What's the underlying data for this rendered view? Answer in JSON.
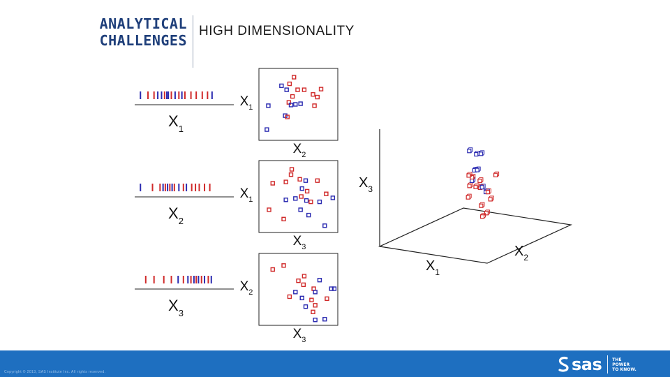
{
  "header": {
    "title_line1": "ANALYTICAL",
    "title_line2": "CHALLENGES",
    "subtitle": "HIGH DIMENSIONALITY"
  },
  "colors": {
    "title": "#1f3f7a",
    "red": "#d02a2a",
    "blue": "#2a2ab0",
    "footer": "#1e6fc0"
  },
  "labels": {
    "x1": "X1",
    "x2": "X2",
    "x3": "X3"
  },
  "panels": [
    {
      "x_axis": "X2",
      "y_axis": "X1",
      "points": [
        {
          "c": "red",
          "x": 0.44,
          "y": 0.91
        },
        {
          "c": "red",
          "x": 0.38,
          "y": 0.81
        },
        {
          "c": "blue",
          "x": 0.27,
          "y": 0.78
        },
        {
          "c": "blue",
          "x": 0.34,
          "y": 0.72
        },
        {
          "c": "red",
          "x": 0.49,
          "y": 0.72
        },
        {
          "c": "red",
          "x": 0.58,
          "y": 0.72
        },
        {
          "c": "red",
          "x": 0.81,
          "y": 0.73
        },
        {
          "c": "red",
          "x": 0.42,
          "y": 0.62
        },
        {
          "c": "red",
          "x": 0.7,
          "y": 0.65
        },
        {
          "c": "red",
          "x": 0.76,
          "y": 0.61
        },
        {
          "c": "blue",
          "x": 0.09,
          "y": 0.48
        },
        {
          "c": "red",
          "x": 0.37,
          "y": 0.53
        },
        {
          "c": "blue",
          "x": 0.46,
          "y": 0.5
        },
        {
          "c": "blue",
          "x": 0.53,
          "y": 0.51
        },
        {
          "c": "red",
          "x": 0.72,
          "y": 0.48
        },
        {
          "c": "blue",
          "x": 0.4,
          "y": 0.49
        },
        {
          "c": "blue",
          "x": 0.32,
          "y": 0.33
        },
        {
          "c": "red",
          "x": 0.35,
          "y": 0.31
        },
        {
          "c": "blue",
          "x": 0.07,
          "y": 0.12
        }
      ]
    },
    {
      "x_axis": "X3",
      "y_axis": "X1",
      "points": [
        {
          "c": "red",
          "x": 0.41,
          "y": 0.91
        },
        {
          "c": "red",
          "x": 0.4,
          "y": 0.83
        },
        {
          "c": "red",
          "x": 0.15,
          "y": 0.7
        },
        {
          "c": "red",
          "x": 0.33,
          "y": 0.72
        },
        {
          "c": "red",
          "x": 0.52,
          "y": 0.76
        },
        {
          "c": "blue",
          "x": 0.6,
          "y": 0.74
        },
        {
          "c": "red",
          "x": 0.76,
          "y": 0.74
        },
        {
          "c": "blue",
          "x": 0.55,
          "y": 0.62
        },
        {
          "c": "red",
          "x": 0.62,
          "y": 0.58
        },
        {
          "c": "red",
          "x": 0.88,
          "y": 0.54
        },
        {
          "c": "blue",
          "x": 0.33,
          "y": 0.45
        },
        {
          "c": "blue",
          "x": 0.46,
          "y": 0.47
        },
        {
          "c": "red",
          "x": 0.54,
          "y": 0.5
        },
        {
          "c": "blue",
          "x": 0.61,
          "y": 0.44
        },
        {
          "c": "red",
          "x": 0.67,
          "y": 0.42
        },
        {
          "c": "blue",
          "x": 0.79,
          "y": 0.42
        },
        {
          "c": "blue",
          "x": 0.97,
          "y": 0.48
        },
        {
          "c": "red",
          "x": 0.1,
          "y": 0.3
        },
        {
          "c": "blue",
          "x": 0.53,
          "y": 0.3
        },
        {
          "c": "red",
          "x": 0.3,
          "y": 0.16
        },
        {
          "c": "blue",
          "x": 0.64,
          "y": 0.22
        },
        {
          "c": "blue",
          "x": 0.86,
          "y": 0.06
        }
      ]
    },
    {
      "x_axis": "X3",
      "y_axis": "X2",
      "points": [
        {
          "c": "red",
          "x": 0.3,
          "y": 0.86
        },
        {
          "c": "red",
          "x": 0.15,
          "y": 0.8
        },
        {
          "c": "red",
          "x": 0.58,
          "y": 0.7
        },
        {
          "c": "red",
          "x": 0.5,
          "y": 0.63
        },
        {
          "c": "red",
          "x": 0.57,
          "y": 0.57
        },
        {
          "c": "blue",
          "x": 0.79,
          "y": 0.64
        },
        {
          "c": "red",
          "x": 0.71,
          "y": 0.51
        },
        {
          "c": "blue",
          "x": 0.95,
          "y": 0.51
        },
        {
          "c": "blue",
          "x": 0.99,
          "y": 0.51
        },
        {
          "c": "blue",
          "x": 0.73,
          "y": 0.46
        },
        {
          "c": "blue",
          "x": 0.46,
          "y": 0.46
        },
        {
          "c": "red",
          "x": 0.38,
          "y": 0.39
        },
        {
          "c": "blue",
          "x": 0.55,
          "y": 0.37
        },
        {
          "c": "red",
          "x": 0.68,
          "y": 0.34
        },
        {
          "c": "red",
          "x": 0.73,
          "y": 0.26
        },
        {
          "c": "blue",
          "x": 0.6,
          "y": 0.24
        },
        {
          "c": "red",
          "x": 0.7,
          "y": 0.16
        },
        {
          "c": "red",
          "x": 0.89,
          "y": 0.36
        },
        {
          "c": "blue",
          "x": 0.73,
          "y": 0.04
        },
        {
          "c": "blue",
          "x": 0.86,
          "y": 0.05
        }
      ]
    }
  ],
  "strips": [
    {
      "axis": "X1",
      "ticks": [
        {
          "c": "blue",
          "v": 0.03
        },
        {
          "c": "red",
          "v": 0.13
        },
        {
          "c": "red",
          "v": 0.21
        },
        {
          "c": "blue",
          "v": 0.26
        },
        {
          "c": "blue",
          "v": 0.31
        },
        {
          "c": "red",
          "v": 0.35
        },
        {
          "c": "blue",
          "v": 0.38
        },
        {
          "c": "blue",
          "v": 0.4
        },
        {
          "c": "red",
          "v": 0.44
        },
        {
          "c": "blue",
          "v": 0.49
        },
        {
          "c": "red",
          "v": 0.54
        },
        {
          "c": "blue",
          "v": 0.58
        },
        {
          "c": "red",
          "v": 0.62
        },
        {
          "c": "red",
          "v": 0.7
        },
        {
          "c": "red",
          "v": 0.77
        },
        {
          "c": "red",
          "v": 0.85
        },
        {
          "c": "red",
          "v": 0.92
        },
        {
          "c": "blue",
          "v": 0.98
        }
      ]
    },
    {
      "axis": "X2",
      "ticks": [
        {
          "c": "blue",
          "v": 0.03
        },
        {
          "c": "red",
          "v": 0.19
        },
        {
          "c": "red",
          "v": 0.29
        },
        {
          "c": "blue",
          "v": 0.33
        },
        {
          "c": "red",
          "v": 0.36
        },
        {
          "c": "blue",
          "v": 0.39
        },
        {
          "c": "red",
          "v": 0.42
        },
        {
          "c": "blue",
          "v": 0.45
        },
        {
          "c": "red",
          "v": 0.48
        },
        {
          "c": "blue",
          "v": 0.54
        },
        {
          "c": "red",
          "v": 0.6
        },
        {
          "c": "blue",
          "v": 0.64
        },
        {
          "c": "red",
          "v": 0.71
        },
        {
          "c": "red",
          "v": 0.76
        },
        {
          "c": "red",
          "v": 0.81
        },
        {
          "c": "red",
          "v": 0.88
        },
        {
          "c": "red",
          "v": 0.95
        }
      ]
    },
    {
      "axis": "X3",
      "ticks": [
        {
          "c": "red",
          "v": 0.1
        },
        {
          "c": "red",
          "v": 0.21
        },
        {
          "c": "red",
          "v": 0.34
        },
        {
          "c": "red",
          "v": 0.44
        },
        {
          "c": "blue",
          "v": 0.53
        },
        {
          "c": "red",
          "v": 0.6
        },
        {
          "c": "blue",
          "v": 0.66
        },
        {
          "c": "red",
          "v": 0.7
        },
        {
          "c": "blue",
          "v": 0.74
        },
        {
          "c": "red",
          "v": 0.77
        },
        {
          "c": "blue",
          "v": 0.8
        },
        {
          "c": "red",
          "v": 0.84
        },
        {
          "c": "blue",
          "v": 0.88
        },
        {
          "c": "red",
          "v": 0.93
        },
        {
          "c": "blue",
          "v": 0.97
        }
      ]
    }
  ],
  "cloud3d": {
    "axes": [
      "X1",
      "X2",
      "X3"
    ],
    "points": [
      {
        "c": "blue",
        "x1": 0.21,
        "x2": 0.8,
        "x3": 0.72
      },
      {
        "c": "blue",
        "x1": 0.22,
        "x2": 0.87,
        "x3": 0.62
      },
      {
        "c": "blue",
        "x1": 0.21,
        "x2": 0.94,
        "x3": 0.58
      },
      {
        "c": "red",
        "x1": 0.7,
        "x2": 0.3,
        "x3": 0.56
      },
      {
        "c": "red",
        "x1": 0.58,
        "x2": 0.64,
        "x3": 0.52
      },
      {
        "c": "red",
        "x1": 0.62,
        "x2": 0.26,
        "x3": 0.4
      },
      {
        "c": "red",
        "x1": 0.55,
        "x2": 0.44,
        "x3": 0.44
      },
      {
        "c": "red",
        "x1": 0.43,
        "x2": 0.52,
        "x3": 0.37
      },
      {
        "c": "blue",
        "x1": 0.36,
        "x2": 0.64,
        "x3": 0.36
      },
      {
        "c": "red",
        "x1": 0.29,
        "x2": 0.73,
        "x3": 0.34
      },
      {
        "c": "blue",
        "x1": 0.22,
        "x2": 0.85,
        "x3": 0.36
      },
      {
        "c": "blue",
        "x1": 0.19,
        "x2": 0.92,
        "x3": 0.31
      },
      {
        "c": "blue",
        "x1": 0.54,
        "x2": 0.58,
        "x3": 0.26
      },
      {
        "c": "blue",
        "x1": 0.52,
        "x2": 0.6,
        "x3": 0.24
      },
      {
        "c": "red",
        "x1": 0.68,
        "x2": 0.45,
        "x3": 0.26
      },
      {
        "c": "red",
        "x1": 0.5,
        "x2": 0.65,
        "x3": 0.2
      },
      {
        "c": "blue",
        "x1": 0.36,
        "x2": 0.76,
        "x3": 0.17
      },
      {
        "c": "red",
        "x1": 0.23,
        "x2": 0.9,
        "x3": 0.15
      },
      {
        "c": "red",
        "x1": 0.72,
        "x2": 0.35,
        "x3": 0.1
      },
      {
        "c": "red",
        "x1": 0.69,
        "x2": 0.34,
        "x3": 0.04
      },
      {
        "c": "red",
        "x1": 0.5,
        "x2": 0.57,
        "x3": 0.02
      },
      {
        "c": "red",
        "x1": 0.08,
        "x2": 0.96,
        "x3": 0.16
      }
    ]
  },
  "footer": {
    "copyright": "Copyright © 2013, SAS Institute Inc. All rights reserved.",
    "brand": "sas",
    "tagline_line1": "THE",
    "tagline_line2": "POWER",
    "tagline_line3": "TO KNOW."
  }
}
